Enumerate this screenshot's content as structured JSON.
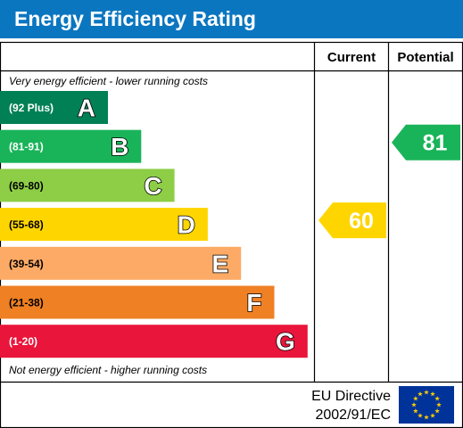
{
  "title": "Energy Efficiency Rating",
  "header": {
    "current": "Current",
    "potential": "Potential"
  },
  "top_note": "Very energy efficient - lower running costs",
  "bottom_note": "Not energy efficient - higher running costs",
  "footer": {
    "directive_line1": "EU Directive",
    "directive_line2": "2002/91/EC",
    "flag": "eu-flag-icon"
  },
  "chart_data": {
    "type": "bar",
    "bands": [
      {
        "letter": "A",
        "range": "(92 Plus)",
        "color": "#008054"
      },
      {
        "letter": "B",
        "range": "(81-91)",
        "color": "#19b459"
      },
      {
        "letter": "C",
        "range": "(69-80)",
        "color": "#8dce46"
      },
      {
        "letter": "D",
        "range": "(55-68)",
        "color": "#ffd500"
      },
      {
        "letter": "E",
        "range": "(39-54)",
        "color": "#fcaa65"
      },
      {
        "letter": "F",
        "range": "(21-38)",
        "color": "#ef8023"
      },
      {
        "letter": "G",
        "range": "(1-20)",
        "color": "#e9153b"
      }
    ],
    "current": {
      "value": 60,
      "band": "D",
      "color": "#ffd500"
    },
    "potential": {
      "value": 81,
      "band": "B",
      "color": "#19b459"
    }
  }
}
